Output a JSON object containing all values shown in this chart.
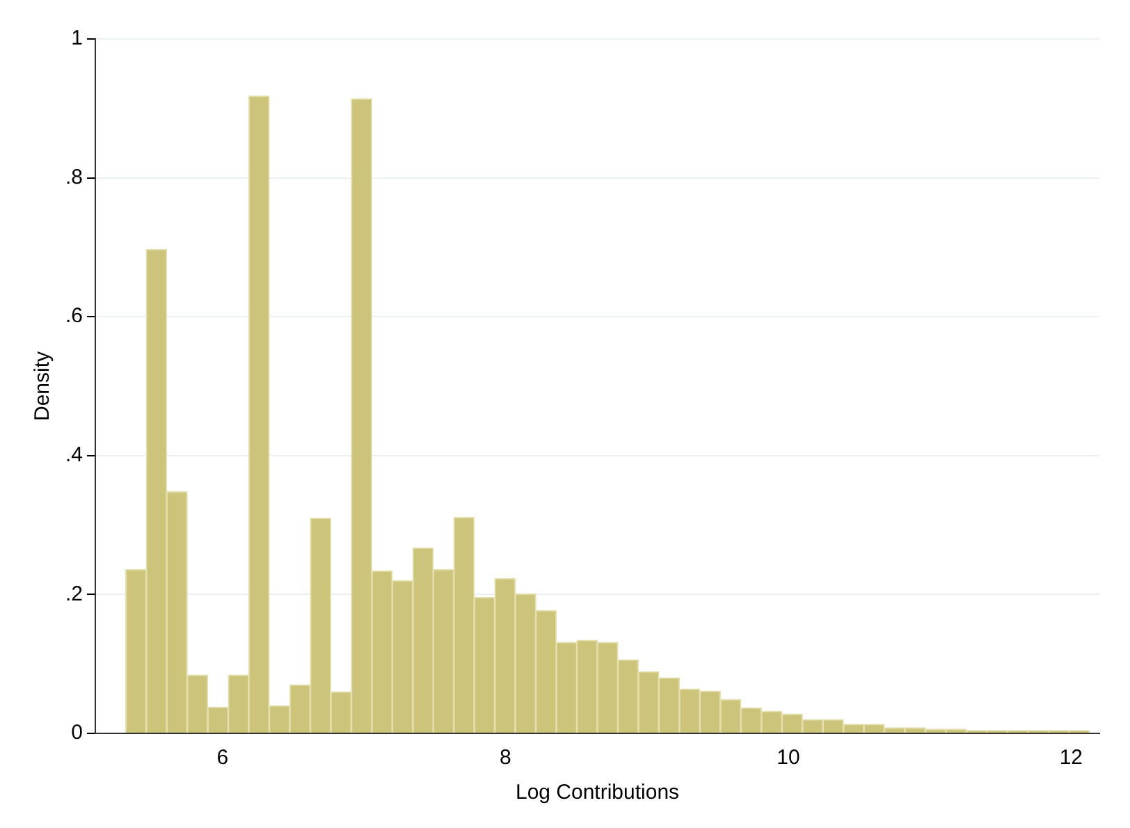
{
  "chart_data": {
    "type": "histogram",
    "xlabel": "Log Contributions",
    "ylabel": "Density",
    "bins": [
      5.315,
      5.46,
      5.605,
      5.75,
      5.895,
      6.04,
      6.185,
      6.33,
      6.475,
      6.62,
      6.765,
      6.91,
      7.055,
      7.2,
      7.345,
      7.49,
      7.635,
      7.78,
      7.925,
      8.07,
      8.215,
      8.36,
      8.505,
      8.65,
      8.795,
      8.94,
      9.085,
      9.23,
      9.375,
      9.52,
      9.665,
      9.81,
      9.955,
      10.1,
      10.245,
      10.39,
      10.535,
      10.68,
      10.825,
      10.97,
      11.115,
      11.26,
      11.405,
      11.55,
      11.695,
      11.84,
      11.985,
      12.13
    ],
    "values": [
      0.236,
      0.697,
      0.348,
      0.084,
      0.038,
      0.084,
      0.918,
      0.04,
      0.07,
      0.31,
      0.06,
      0.914,
      0.234,
      0.22,
      0.267,
      0.236,
      0.311,
      0.196,
      0.223,
      0.201,
      0.177,
      0.131,
      0.134,
      0.131,
      0.106,
      0.089,
      0.08,
      0.064,
      0.061,
      0.049,
      0.037,
      0.032,
      0.028,
      0.02,
      0.02,
      0.013,
      0.013,
      0.008,
      0.008,
      0.006,
      0.006,
      0.004,
      0.004,
      0.004,
      0.004,
      0.004,
      0.004
    ],
    "color": "#cdc47b",
    "xlim": [
      5.1,
      12.2
    ],
    "xticks": [
      6,
      8,
      10,
      12
    ],
    "ylim": [
      0,
      1
    ],
    "yticks": [
      0,
      {
        "value": 0.2,
        "label": ".2"
      },
      {
        "value": 0.4,
        "label": ".4"
      },
      {
        "value": 0.6,
        "label": ".6"
      },
      {
        "value": 0.8,
        "label": ".8"
      },
      1
    ],
    "grid": "y"
  }
}
